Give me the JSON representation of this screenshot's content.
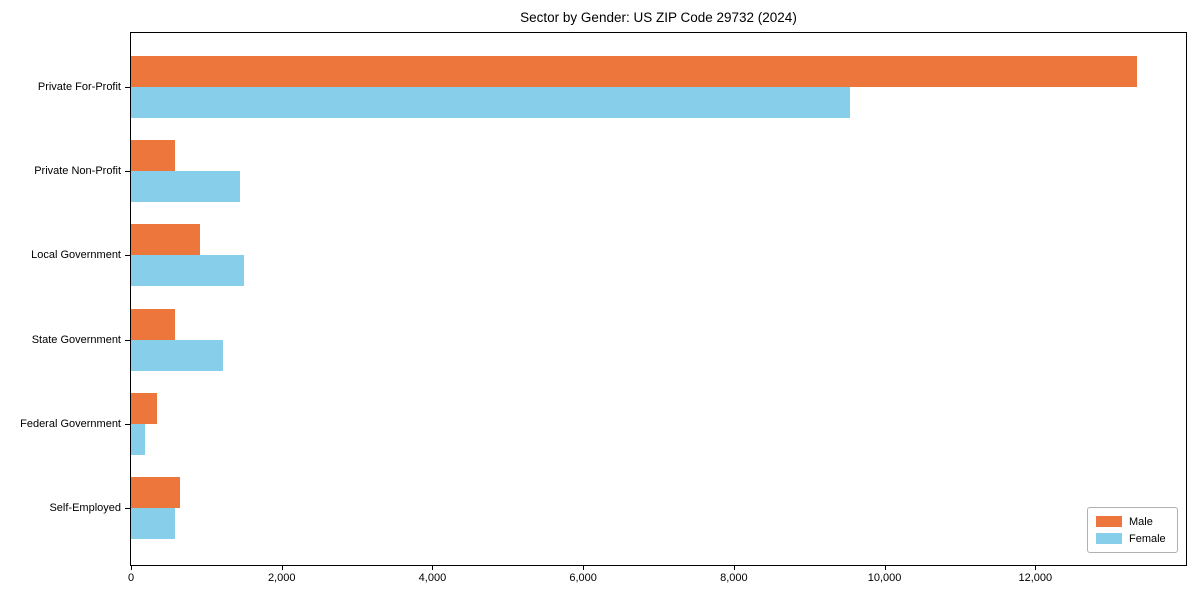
{
  "title": "Sector by Gender: US ZIP Code 29732 (2024)",
  "chart_data": {
    "type": "bar",
    "orientation": "horizontal",
    "title": "Sector by Gender: US ZIP Code 29732 (2024)",
    "categories": [
      "Private For-Profit",
      "Private Non-Profit",
      "Local Government",
      "State Government",
      "Federal Government",
      "Self-Employed"
    ],
    "series": [
      {
        "name": "Male",
        "color": "#ec763c",
        "values": [
          13350,
          590,
          910,
          590,
          345,
          655
        ]
      },
      {
        "name": "Female",
        "color": "#87ceeb",
        "values": [
          9540,
          1440,
          1500,
          1220,
          180,
          580
        ]
      }
    ],
    "xlabel": "",
    "ylabel": "",
    "xlim": [
      0,
      14000
    ],
    "xticks": [
      0,
      2000,
      4000,
      6000,
      8000,
      10000,
      12000
    ],
    "xtick_labels": [
      "0",
      "2,000",
      "4,000",
      "6,000",
      "8,000",
      "10,000",
      "12,000"
    ],
    "grid": false,
    "legend_position": "lower right"
  },
  "colors": {
    "male_bar": "#ec763c",
    "female_bar": "#87ceeb",
    "spine": "#000000",
    "legend_border": "#b0b0b0",
    "background": "#ffffff"
  }
}
